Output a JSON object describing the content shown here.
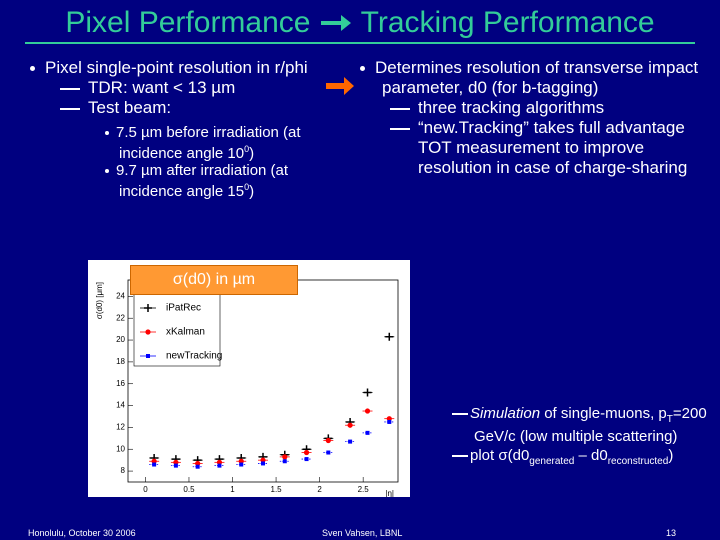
{
  "title": {
    "left": "Pixel Performance",
    "right": "Tracking Performance"
  },
  "left": {
    "bullet": "Pixel single-point resolution in r/phi",
    "subs": [
      "TDR: want < 13 µm",
      "Test beam:"
    ],
    "subsubs": [
      {
        "before": "7.5 µm before irradiation (at incidence angle 10",
        "sup": "0",
        "after": ")"
      },
      {
        "before": "9.7 µm after irradiation (at incidence angle 15",
        "sup": "0",
        "after": ")"
      }
    ]
  },
  "right": {
    "bullet": "Determines resolution of transverse impact parameter, d0 (for b-tagging)",
    "subs": [
      "three tracking algorithms",
      "“new.Tracking” takes full advantage TOT measurement to improve resolution in case of charge-sharing"
    ]
  },
  "label_box": "σ(d0) in µm",
  "annotation": {
    "simulation": {
      "italic": "Simulation",
      "text": " of single-muons, p",
      "sub": "T",
      "rest": "=200 GeV/c (low multiple scattering)"
    },
    "plot": {
      "a": "plot  σ(d0",
      "sub1": "generated",
      "b": " – d0",
      "sub2": "reconstructed",
      "c": ")"
    }
  },
  "chart_data": {
    "type": "scatter",
    "ylabel": "σ(d0) [μm]",
    "xlabel": "|η|",
    "xlim": [
      -0.2,
      2.9
    ],
    "ylim": [
      7,
      25.5
    ],
    "xticks": [
      0,
      0.5,
      1,
      1.5,
      2,
      2.5
    ],
    "yticks": [
      8,
      10,
      12,
      14,
      16,
      18,
      20,
      22,
      24
    ],
    "x": [
      0.1,
      0.35,
      0.6,
      0.85,
      1.1,
      1.35,
      1.6,
      1.85,
      2.1,
      2.35,
      2.55,
      2.8
    ],
    "series": [
      {
        "name": "iPatRec",
        "color": "#000000",
        "values": [
          9.2,
          9.1,
          9.0,
          9.1,
          9.2,
          9.3,
          9.5,
          10.0,
          11.0,
          12.5,
          15.2,
          20.3
        ]
      },
      {
        "name": "xKalman",
        "color": "#ff0000",
        "values": [
          8.9,
          8.8,
          8.7,
          8.8,
          8.9,
          9.0,
          9.3,
          9.7,
          10.8,
          12.2,
          13.5,
          12.8
        ]
      },
      {
        "name": "newTracking",
        "color": "#0000ff",
        "values": [
          8.6,
          8.5,
          8.4,
          8.5,
          8.6,
          8.7,
          8.9,
          9.1,
          9.7,
          10.7,
          11.5,
          12.5
        ]
      }
    ]
  },
  "footer": {
    "left": "Honolulu, October 30 2006",
    "center": "Sven Vahsen, LBNL",
    "page": "13"
  }
}
